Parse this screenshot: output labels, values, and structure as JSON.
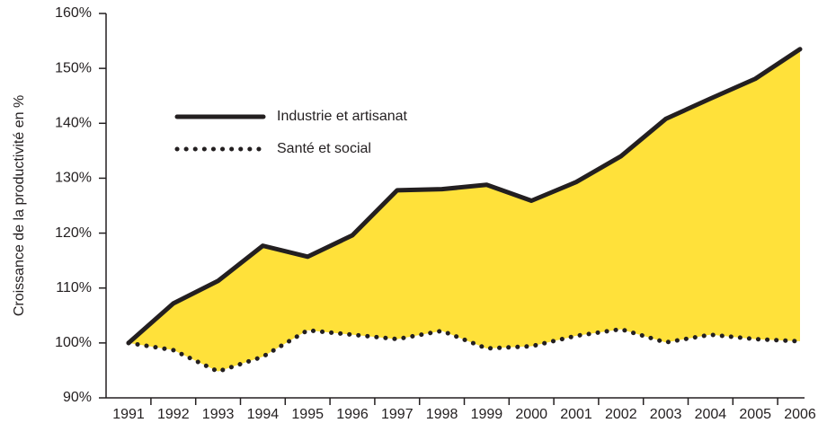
{
  "chart_data": {
    "type": "line",
    "ylabel": "Croissance de la productivité en %",
    "categories": [
      "1991",
      "1992",
      "1993",
      "1994",
      "1995",
      "1996",
      "1997",
      "1998",
      "1999",
      "2000",
      "2001",
      "2002",
      "2003",
      "2004",
      "2005",
      "2006"
    ],
    "series": [
      {
        "name": "Industrie et artisanat",
        "color": "#231f20",
        "style": "solid",
        "values": [
          100,
          107.2,
          111.3,
          117.7,
          115.7,
          119.6,
          127.8,
          128.0,
          128.8,
          125.9,
          129.3,
          134.0,
          140.8,
          144.5,
          148.1,
          153.5
        ]
      },
      {
        "name": "Santé et social",
        "color": "#231f20",
        "style": "dotted",
        "values": [
          100,
          98.7,
          94.8,
          97.5,
          102.3,
          101.5,
          100.7,
          102.2,
          99.0,
          99.4,
          101.3,
          102.5,
          100.1,
          101.5,
          100.7,
          100.3
        ]
      }
    ],
    "fill_between_color": "#ffe13a",
    "ylim": [
      90,
      160
    ],
    "yticks": [
      {
        "value": 90,
        "label": "90%"
      },
      {
        "value": 100,
        "label": "100%"
      },
      {
        "value": 110,
        "label": "110%"
      },
      {
        "value": 120,
        "label": "120%"
      },
      {
        "value": 130,
        "label": "130%"
      },
      {
        "value": 140,
        "label": "140%"
      },
      {
        "value": 150,
        "label": "150%"
      },
      {
        "value": 160,
        "label": "160%"
      }
    ],
    "legend": "upper left"
  }
}
